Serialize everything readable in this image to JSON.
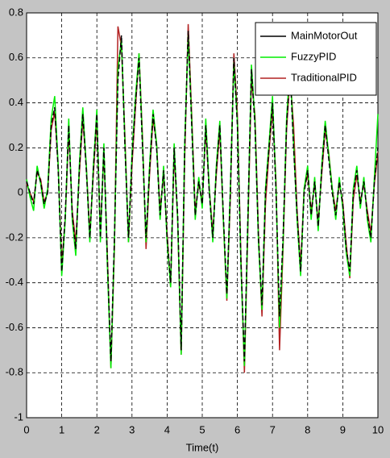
{
  "chart_data": {
    "type": "line",
    "x": [
      0,
      0.1,
      0.2,
      0.3,
      0.4,
      0.5,
      0.6,
      0.7,
      0.8,
      0.9,
      1,
      1.1,
      1.2,
      1.3,
      1.4,
      1.5,
      1.6,
      1.7,
      1.8,
      1.9,
      2,
      2.1,
      2.2,
      2.3,
      2.4,
      2.5,
      2.6,
      2.7,
      2.8,
      2.9,
      3,
      3.1,
      3.2,
      3.3,
      3.4,
      3.5,
      3.6,
      3.7,
      3.8,
      3.9,
      4,
      4.1,
      4.2,
      4.3,
      4.4,
      4.5,
      4.6,
      4.7,
      4.8,
      4.9,
      5,
      5.1,
      5.2,
      5.3,
      5.4,
      5.5,
      5.6,
      5.7,
      5.8,
      5.9,
      6,
      6.1,
      6.2,
      6.3,
      6.4,
      6.5,
      6.6,
      6.7,
      6.8,
      6.9,
      7,
      7.1,
      7.2,
      7.3,
      7.4,
      7.5,
      7.6,
      7.7,
      7.8,
      7.9,
      8,
      8.1,
      8.2,
      8.3,
      8.4,
      8.5,
      8.6,
      8.7,
      8.8,
      8.9,
      9,
      9.1,
      9.2,
      9.3,
      9.4,
      9.5,
      9.6,
      9.7,
      9.8,
      9.9,
      10
    ],
    "series": [
      {
        "name": "MainMotorOut",
        "color": "#000000",
        "dashed": true,
        "values": [
          0.05,
          0,
          -0.05,
          0.1,
          0.05,
          -0.05,
          0,
          0.3,
          0.38,
          0.1,
          -0.35,
          -0.1,
          0.3,
          -0.1,
          -0.25,
          0.1,
          0.35,
          0.1,
          -0.2,
          0.1,
          0.35,
          -0.2,
          0.2,
          -0.3,
          -0.75,
          -0.2,
          0.5,
          0.7,
          0.2,
          -0.2,
          0.15,
          0.4,
          0.6,
          0.2,
          -0.2,
          0.1,
          0.35,
          0.2,
          -0.1,
          0.1,
          -0.2,
          -0.4,
          0.2,
          -0.1,
          -0.7,
          0.2,
          0.72,
          0.3,
          -0.1,
          0.05,
          -0.05,
          0.3,
          0,
          -0.2,
          0.1,
          0.3,
          -0.1,
          -0.45,
          0,
          0.6,
          0.3,
          -0.3,
          -0.75,
          -0.1,
          0.55,
          0.3,
          -0.2,
          -0.5,
          0,
          0.2,
          0.4,
          0,
          -0.55,
          -0.2,
          0.3,
          0.55,
          0.2,
          -0.1,
          -0.35,
          0,
          0.1,
          -0.1,
          0.05,
          -0.15,
          0.1,
          0.3,
          0.15,
          0,
          -0.1,
          0.05,
          -0.05,
          -0.25,
          -0.35,
          0,
          0.1,
          -0.05,
          0.05,
          -0.1,
          -0.2,
          0.05,
          0.2
        ]
      },
      {
        "name": "FuzzyPID",
        "color": "#00ee00",
        "dashed": false,
        "values": [
          0.06,
          -0.02,
          -0.08,
          0.12,
          0.04,
          -0.07,
          0.02,
          0.33,
          0.43,
          0.12,
          -0.37,
          -0.12,
          0.33,
          -0.12,
          -0.28,
          0.12,
          0.38,
          0.12,
          -0.22,
          0.12,
          0.37,
          -0.22,
          0.22,
          -0.33,
          -0.78,
          -0.22,
          0.55,
          0.68,
          0.22,
          -0.22,
          0.17,
          0.43,
          0.62,
          0.22,
          -0.22,
          0.12,
          0.37,
          0.22,
          -0.12,
          0.12,
          -0.22,
          -0.42,
          0.22,
          -0.12,
          -0.72,
          0.22,
          0.7,
          0.32,
          -0.12,
          0.07,
          -0.07,
          0.33,
          0.02,
          -0.22,
          0.12,
          0.32,
          -0.12,
          -0.47,
          0.02,
          0.58,
          0.32,
          -0.32,
          -0.77,
          -0.12,
          0.57,
          0.32,
          -0.22,
          -0.52,
          0.02,
          0.22,
          0.43,
          0.02,
          -0.6,
          -0.22,
          0.33,
          0.57,
          0.22,
          -0.12,
          -0.37,
          0.02,
          0.12,
          -0.12,
          0.07,
          -0.17,
          0.12,
          0.32,
          0.17,
          0.02,
          -0.12,
          0.07,
          -0.07,
          -0.27,
          -0.37,
          0.02,
          0.12,
          -0.07,
          0.07,
          -0.12,
          -0.22,
          0.07,
          0.35
        ]
      },
      {
        "name": "TraditionalPID",
        "color": "#b22222",
        "dashed": false,
        "values": [
          0.04,
          0,
          -0.04,
          0.09,
          0.06,
          -0.04,
          0,
          0.28,
          0.36,
          0.12,
          -0.32,
          -0.12,
          0.28,
          -0.08,
          -0.22,
          0.08,
          0.33,
          0.12,
          -0.18,
          0.08,
          0.33,
          -0.18,
          0.18,
          -0.28,
          -0.78,
          -0.25,
          0.74,
          0.65,
          0.25,
          -0.22,
          0.12,
          0.38,
          0.62,
          0.25,
          -0.25,
          0.08,
          0.33,
          0.22,
          -0.08,
          0.08,
          -0.18,
          -0.42,
          0.18,
          -0.12,
          -0.72,
          0.15,
          0.75,
          0.35,
          -0.08,
          0.04,
          -0.04,
          0.28,
          0.02,
          -0.18,
          0.08,
          0.28,
          -0.12,
          -0.48,
          -0.02,
          0.62,
          0.35,
          -0.28,
          -0.8,
          -0.15,
          0.5,
          0.35,
          -0.18,
          -0.55,
          -0.05,
          0.18,
          0.38,
          0.05,
          -0.7,
          -0.25,
          0.28,
          0.52,
          0.3,
          -0.08,
          -0.33,
          0.02,
          0.08,
          -0.08,
          0.04,
          -0.13,
          0.08,
          0.28,
          0.18,
          0.02,
          -0.08,
          0.04,
          -0.04,
          -0.23,
          -0.38,
          -0.03,
          0.08,
          -0.04,
          0.04,
          -0.08,
          -0.18,
          0.04,
          0.18
        ]
      }
    ],
    "xlabel": "Time(t)",
    "xlim": [
      0,
      10
    ],
    "xticks": [
      0,
      1,
      2,
      3,
      4,
      5,
      6,
      7,
      8,
      9,
      10
    ],
    "ylim": [
      -1,
      0.8
    ],
    "yticks": [
      -1,
      -0.8,
      -0.6,
      -0.4,
      -0.2,
      0,
      0.2,
      0.4,
      0.6,
      0.8
    ],
    "grid": true,
    "legend": "top-right"
  }
}
